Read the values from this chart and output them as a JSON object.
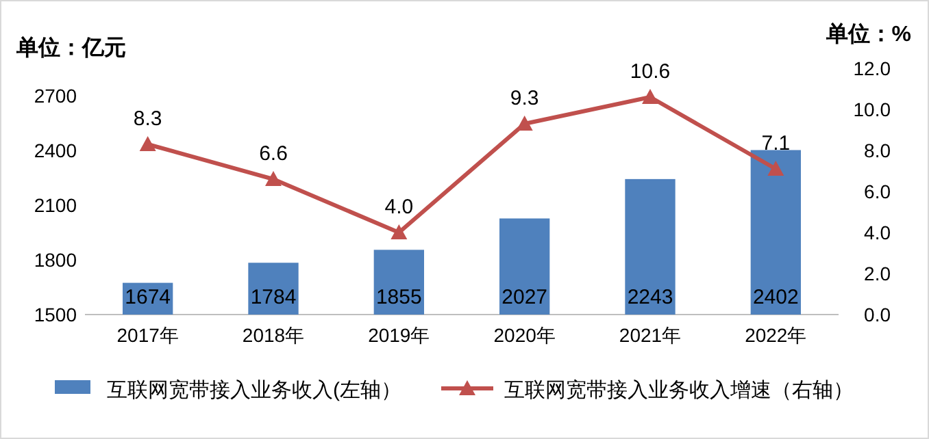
{
  "chart_data": {
    "type": "bar",
    "ylabel": "单位：亿元",
    "y2label": "单位：%",
    "categories": [
      "2017年",
      "2018年",
      "2019年",
      "2020年",
      "2021年",
      "2022年"
    ],
    "series": [
      {
        "name": "互联网宽带接入业务收入(左轴）",
        "color": "#4f81bd",
        "values": [
          1674,
          1784,
          1855,
          2027,
          2243,
          2402
        ]
      },
      {
        "name": "互联网宽带接入业务收入增速（右轴）",
        "type": "line",
        "axis": "y2",
        "color": "#c0504d",
        "marker": "triangle",
        "values": [
          8.3,
          6.6,
          4.0,
          9.3,
          10.6,
          7.1
        ],
        "value_labels": [
          "8.3",
          "6.6",
          "4.0",
          "9.3",
          "10.6",
          "7.1"
        ]
      }
    ],
    "data_labels": true,
    "ylim": [
      1500,
      2700
    ],
    "yticks": [
      1500,
      1800,
      2100,
      2400,
      2700
    ],
    "y2lim": [
      0,
      12
    ],
    "y2ticks": [
      {
        "value": 0,
        "label": "0.0"
      },
      {
        "value": 2,
        "label": "2.0"
      },
      {
        "value": 4,
        "label": "4.0"
      },
      {
        "value": 6,
        "label": "6.0"
      },
      {
        "value": 8,
        "label": "8.0"
      },
      {
        "value": 10,
        "label": "10.0"
      },
      {
        "value": 12,
        "label": "12.0"
      }
    ],
    "grid": false,
    "legend": "bottom"
  }
}
